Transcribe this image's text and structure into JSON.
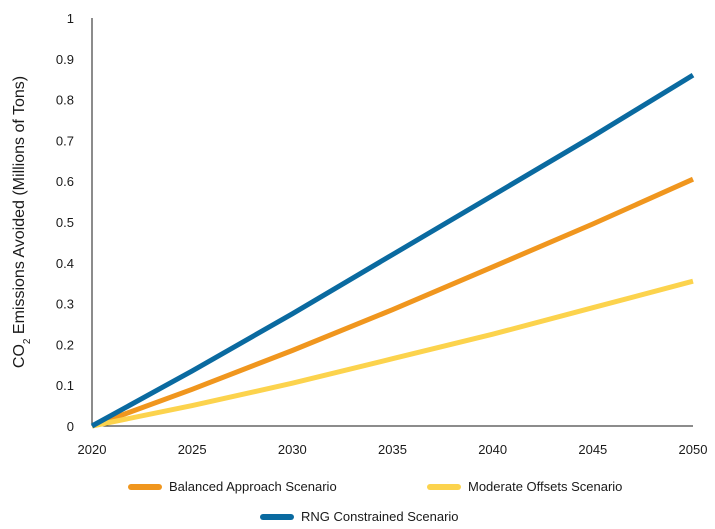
{
  "chart_data": {
    "type": "line",
    "ylabel_main": "CO",
    "ylabel_sub": "2",
    "ylabel_rest": " Emissions Avoided (Millions of Tons)",
    "xlim": [
      2020,
      2050
    ],
    "ylim": [
      0,
      1
    ],
    "x_ticks": [
      "2020",
      "2025",
      "2030",
      "2035",
      "2040",
      "2045",
      "2050"
    ],
    "y_ticks": [
      "0",
      "0.1",
      "0.2",
      "0.3",
      "0.4",
      "0.5",
      "0.6",
      "0.7",
      "0.8",
      "0.9",
      "1"
    ],
    "grid": false,
    "legend_position": "bottom",
    "series": [
      {
        "name": "Balanced Approach Scenario",
        "color": "#F0961E",
        "x": [
          2020,
          2025,
          2030,
          2035,
          2040,
          2045,
          2050
        ],
        "y": [
          0,
          0.09,
          0.185,
          0.285,
          0.39,
          0.495,
          0.605
        ]
      },
      {
        "name": "Moderate Offsets Scenario",
        "color": "#FCD34D",
        "x": [
          2020,
          2025,
          2030,
          2035,
          2040,
          2045,
          2050
        ],
        "y": [
          0,
          0.05,
          0.105,
          0.165,
          0.225,
          0.29,
          0.355
        ]
      },
      {
        "name": "RNG Constrained Scenario",
        "color": "#0A6AA0",
        "x": [
          2020,
          2025,
          2030,
          2035,
          2040,
          2045,
          2050
        ],
        "y": [
          0,
          0.135,
          0.275,
          0.42,
          0.565,
          0.71,
          0.86
        ]
      }
    ]
  }
}
